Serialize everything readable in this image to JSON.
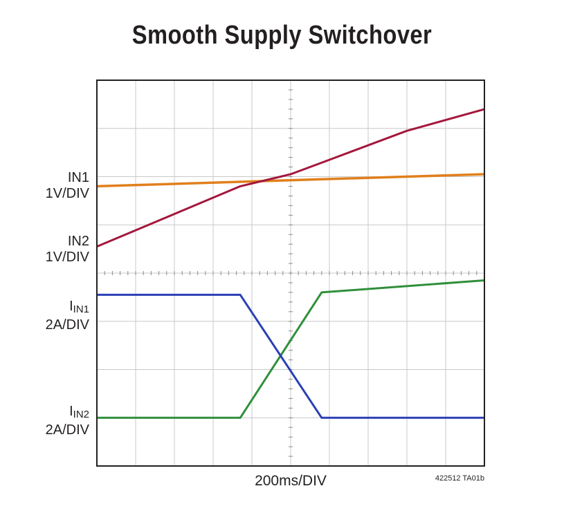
{
  "title": "Smooth Supply Switchover",
  "channel_labels": {
    "in1": {
      "name": "IN1",
      "scale": "1V/DIV"
    },
    "in2": {
      "name": "IN2",
      "scale": "1V/DIV"
    },
    "iin1": {
      "name_main": "I",
      "name_sub": "IN1",
      "scale": "2A/DIV"
    },
    "iin2": {
      "name_main": "I",
      "name_sub": "IN2",
      "scale": "2A/DIV"
    }
  },
  "figure_number": "422512 TA01b",
  "colors": {
    "grid": "#c8c8c8",
    "frame": "#231f20",
    "in1": "#e07f1c",
    "in2": "#a3173c",
    "iin1": "#2b3fb5",
    "iin2": "#2f8f3a"
  },
  "chart_data": {
    "type": "line",
    "title": "Smooth Supply Switchover",
    "xlabel": "200ms/DIV",
    "ylabel": "",
    "x_unit": "div",
    "y_unit": "div",
    "xlim": [
      0,
      10
    ],
    "ylim": [
      0,
      8
    ],
    "grid": true,
    "grid_divisions": {
      "x": 10,
      "y": 8
    },
    "series": [
      {
        "name": "IN1",
        "x": [
          0,
          10
        ],
        "y": [
          5.8,
          6.05
        ]
      },
      {
        "name": "IN2",
        "x": [
          0,
          3.7,
          5.0,
          6.0,
          8.0,
          10.0
        ],
        "y": [
          4.55,
          5.8,
          6.05,
          6.35,
          6.95,
          7.4
        ]
      },
      {
        "name": "IIN1",
        "x": [
          0,
          3.7,
          5.8,
          10
        ],
        "y": [
          3.55,
          3.55,
          1.0,
          1.0
        ]
      },
      {
        "name": "IIN2",
        "x": [
          0,
          3.7,
          5.8,
          10
        ],
        "y": [
          1.0,
          1.0,
          3.6,
          3.85
        ]
      }
    ]
  }
}
